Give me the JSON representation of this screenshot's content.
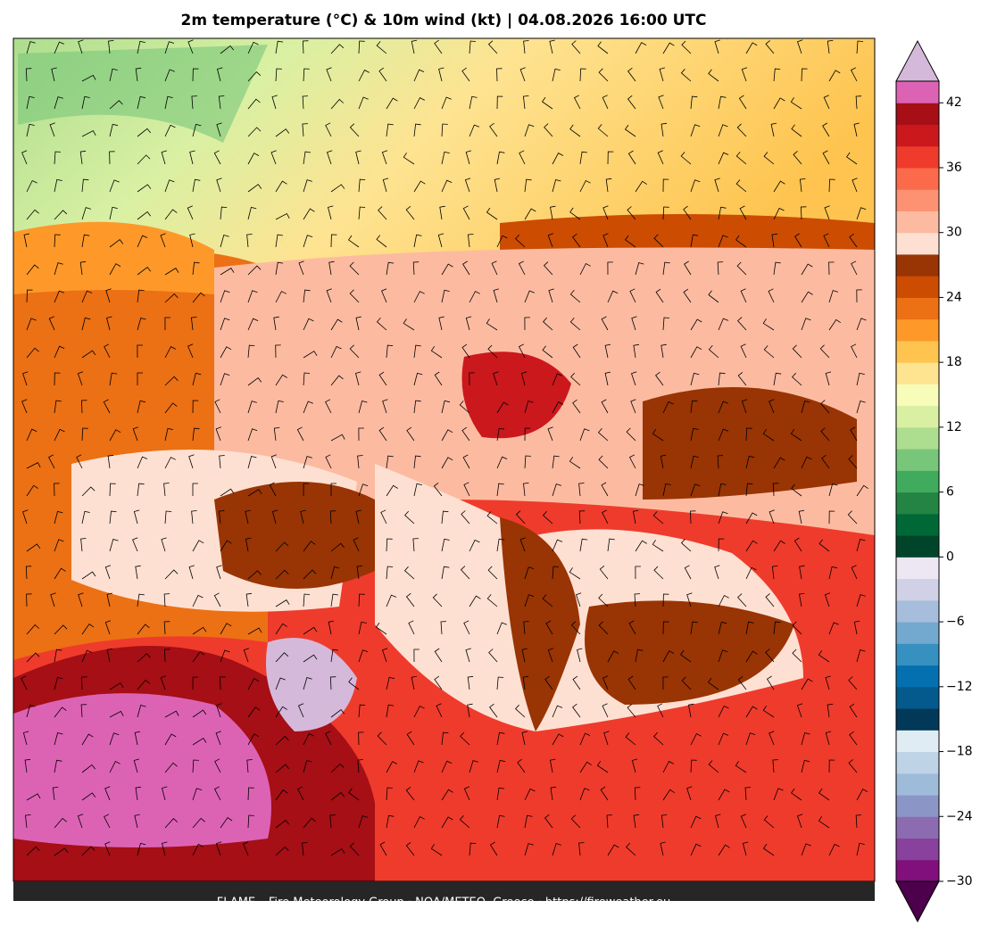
{
  "header": {
    "title": "2m temperature (°C) & 10m wind (kt)  |  04.08.2026 16:00 UTC"
  },
  "colorbar": {
    "lim": [
      -30,
      44
    ],
    "ticks": [
      {
        "value": -30,
        "label": "−30"
      },
      {
        "value": -24,
        "label": "−24"
      },
      {
        "value": -18,
        "label": "−18"
      },
      {
        "value": -12,
        "label": "−12"
      },
      {
        "value": -6,
        "label": "−6"
      },
      0,
      6,
      12,
      18,
      24,
      30,
      36,
      42
    ],
    "colors": [
      "#810f7c",
      "#88419d",
      "#8c6bb1",
      "#8c96c6",
      "#9ebcda",
      "#bfd3e6",
      "#e0ecf4",
      "#023858",
      "#045a8d",
      "#0570b0",
      "#3690c0",
      "#74a9cf",
      "#a6bddb",
      "#d0d1e6",
      "#ece7f2",
      "#004529",
      "#006837",
      "#238443",
      "#41ab5d",
      "#78c679",
      "#addd8e",
      "#d9f0a3",
      "#f7fcb9",
      "#fee391",
      "#fec44f",
      "#fe9929",
      "#ec7014",
      "#cc4c02",
      "#993404",
      "#fee0d2",
      "#fcbba1",
      "#fc9272",
      "#fb6a4a",
      "#ef3b2c",
      "#cb181d",
      "#a50f15",
      "#dc63b4"
    ],
    "under": "#4d004b",
    "over": "#d4b9da"
  },
  "footer": {
    "credit": "FLAME – Fire Meteorology Group · NOA/METEO, Greece · https://fireweather.eu"
  }
}
